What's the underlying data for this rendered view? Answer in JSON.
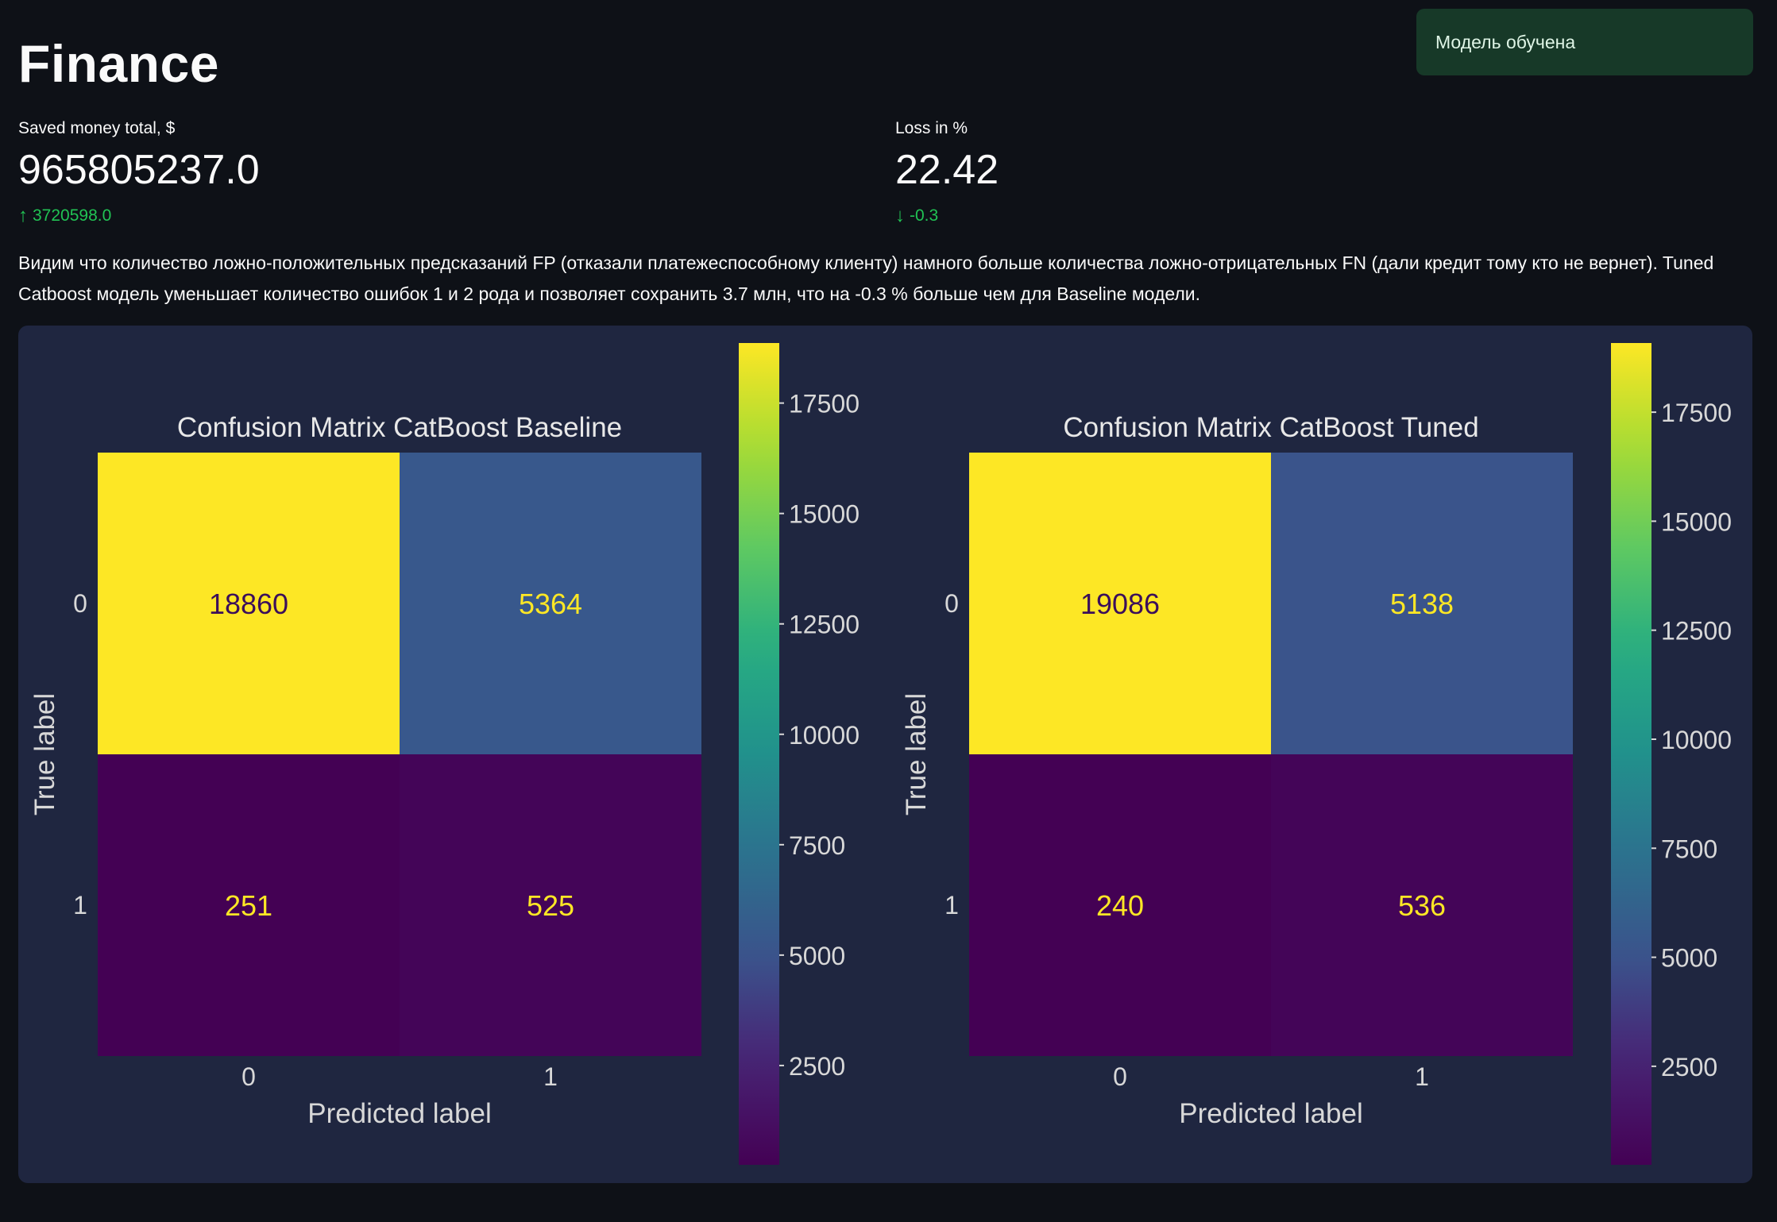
{
  "page": {
    "title": "Finance"
  },
  "toast": {
    "message": "Модель обучена"
  },
  "metrics": [
    {
      "label": "Saved money total, $",
      "value": "965805237.0",
      "delta": "3720598.0",
      "direction": "up"
    },
    {
      "label": "Loss in %",
      "value": "22.42",
      "delta": "-0.3",
      "direction": "down"
    }
  ],
  "description": "Видим что количество ложно-положительных предсказаний FP (отказали платежеспособному клиенту) намного больше количества ложно-отрицательных FN (дали кредит тому кто не вернет). Tuned Catboost модель уменьшает количество ошибок 1 и 2 рода и позволяет сохранить 3.7 млн, что на -0.3 % больше чем для Baseline модели.",
  "colors": {
    "up": "#21c354",
    "down": "#21c354",
    "panel": "#1f2640",
    "background": "#0e1117"
  },
  "chart_data": [
    {
      "type": "heatmap",
      "title": "Confusion Matrix CatBoost Baseline",
      "xlabel": "Predicted label",
      "ylabel": "True label",
      "x_ticks": [
        "0",
        "1"
      ],
      "y_ticks": [
        "0",
        "1"
      ],
      "matrix": [
        [
          18860,
          5364
        ],
        [
          251,
          525
        ]
      ],
      "colormap": "viridis",
      "colorbar": {
        "min": 251,
        "max": 18860,
        "ticks": [
          2500,
          5000,
          7500,
          10000,
          12500,
          15000,
          17500
        ]
      }
    },
    {
      "type": "heatmap",
      "title": "Confusion Matrix CatBoost Tuned",
      "xlabel": "Predicted label",
      "ylabel": "True label",
      "x_ticks": [
        "0",
        "1"
      ],
      "y_ticks": [
        "0",
        "1"
      ],
      "matrix": [
        [
          19086,
          5138
        ],
        [
          240,
          536
        ]
      ],
      "colormap": "viridis",
      "colorbar": {
        "min": 240,
        "max": 19086,
        "ticks": [
          2500,
          5000,
          7500,
          10000,
          12500,
          15000,
          17500
        ]
      }
    }
  ]
}
